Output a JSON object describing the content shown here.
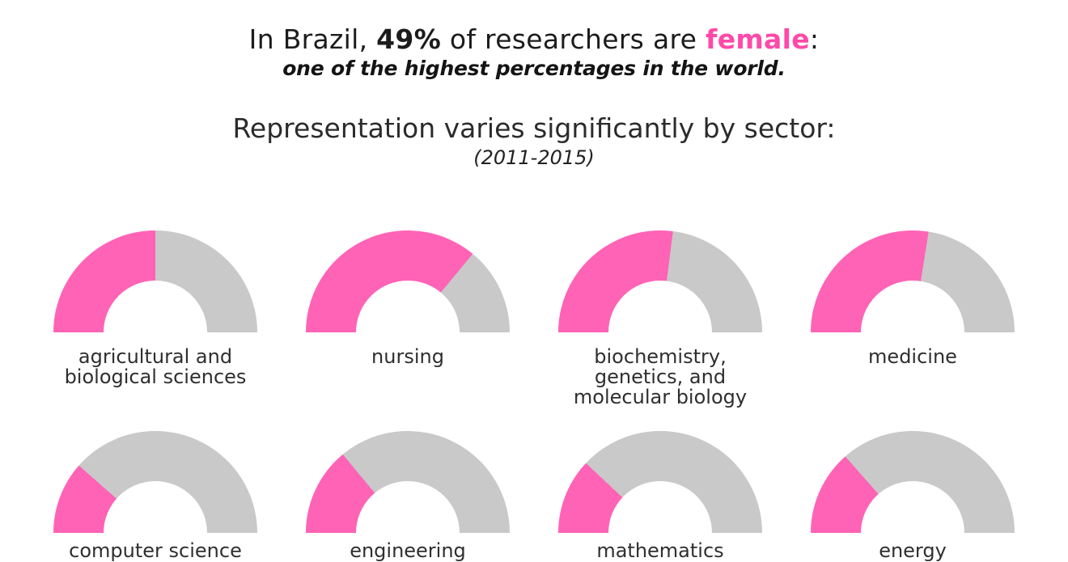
{
  "header": {
    "line1_prefix": "In Brazil, ",
    "line1_stat": "49%",
    "line1_mid": " of researchers are ",
    "line1_highlight": "female",
    "line1_suffix": ":",
    "line2": "one of the highest percentages in the world.",
    "heading2": "Representation varies significantly by sector:",
    "period": "(2011-2015)"
  },
  "colors": {
    "female_text_pink": "#ff49a8",
    "gauge_pink": "#ff63b6",
    "gauge_gray": "#c9c9c9",
    "title_dark": "#1c1c1c",
    "label_gray": "#2f2f2f"
  },
  "chart_data": {
    "type": "pie",
    "variant": "semicircle-donut-gauge-grid",
    "title": "Representation varies significantly by sector:",
    "subtitle": "(2011-2015)",
    "unit": "percent female researchers",
    "headline_stat": "In Brazil, 49% of researchers are female",
    "categories": [
      "agricultural and biological sciences",
      "nursing",
      "biochemistry, genetics, and molecular biology",
      "medicine",
      "computer science",
      "engineering",
      "mathematics",
      "energy"
    ],
    "category_lines": [
      [
        "agricultural and",
        "biological sciences"
      ],
      [
        "nursing"
      ],
      [
        "biochemistry,",
        "genetics, and",
        "molecular biology"
      ],
      [
        "medicine"
      ],
      [
        "computer science"
      ],
      [
        "engineering"
      ],
      [
        "mathematics"
      ],
      [
        "energy"
      ]
    ],
    "values": [
      50,
      72,
      54,
      55,
      23,
      28,
      24,
      27
    ],
    "range": [
      0,
      100
    ],
    "colors": {
      "filled": "#ff63b6",
      "empty": "#c9c9c9"
    },
    "layout": {
      "rows": 2,
      "columns": 4,
      "legend": "none",
      "grid": "off"
    }
  }
}
